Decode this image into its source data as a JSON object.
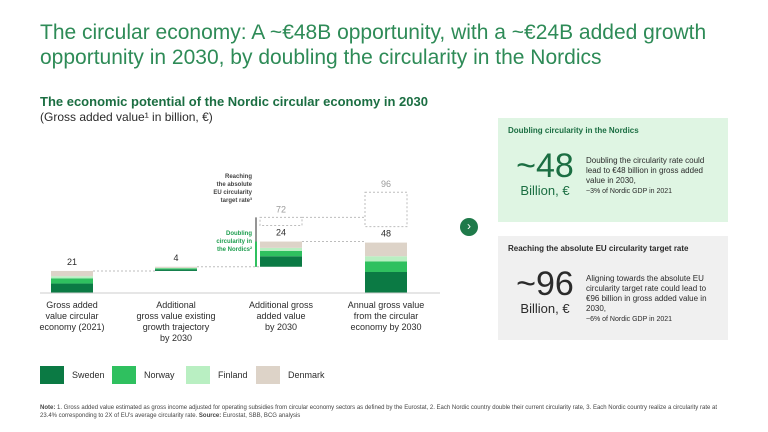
{
  "header": {
    "title": "The circular economy: A ~€48B opportunity, with a ~€24B added growth opportunity in 2030, by doubling the circularity in the Nordics"
  },
  "chart_title": "The economic potential of the Nordic circular economy in 2030",
  "chart_subtitle": "(Gross added value¹ in billion, €)",
  "colors": {
    "Sweden": "#0b7a44",
    "Norway": "#2fc05f",
    "Finland": "#b9efc2",
    "Denmark": "#ddd3c8",
    "title": "#2e8b57"
  },
  "chart_data": {
    "type": "bar",
    "subtype": "waterfall",
    "categories": [
      "Gross added value circular economy (2021)",
      "Additional gross value existing growth trajectory by 2030",
      "Additional gross added value by 2030",
      "Annual gross value from the circular economy by 2030"
    ],
    "category_lines": [
      [
        "Gross added",
        "value circular",
        "economy (2021)"
      ],
      [
        "Additional",
        "gross value existing",
        "growth trajectory",
        "by 2030"
      ],
      [
        "Additional gross",
        "added value",
        "by 2030"
      ],
      [
        "Annual gross value",
        "from the circular",
        "economy by 2030"
      ]
    ],
    "totals": [
      21,
      4,
      24,
      48
    ],
    "bases": [
      0,
      21,
      25,
      0
    ],
    "dashed_totals": [
      null,
      null,
      72,
      96
    ],
    "series": [
      {
        "name": "Sweden",
        "values": [
          9,
          1.5,
          10,
          20
        ]
      },
      {
        "name": "Norway",
        "values": [
          5,
          1,
          5,
          10
        ]
      },
      {
        "name": "Finland",
        "values": [
          2,
          0.5,
          3,
          5
        ]
      },
      {
        "name": "Denmark",
        "values": [
          5,
          1,
          6,
          13
        ]
      }
    ],
    "annotations": {
      "reaching": [
        "Reaching",
        "the absolute",
        "EU circularity",
        "target rate³"
      ],
      "doubling": [
        "Doubling",
        "circularity in",
        "the Nordics²"
      ]
    },
    "ylim": [
      0,
      100
    ],
    "legend": [
      "Sweden",
      "Norway",
      "Finland",
      "Denmark"
    ],
    "legend_position": "bottom-left"
  },
  "cards": [
    {
      "heading": "Doubling circularity in the Nordics",
      "big": "~48",
      "unit": "Billion, €",
      "desc": "Doubling the circularity rate could lead to €48 billion in gross added value in 2030,",
      "desc_small": "~3% of Nordic GDP in 2021"
    },
    {
      "heading": "Reaching the absolute EU circularity target rate",
      "big": "~96",
      "unit": "Billion, €",
      "desc": "Aligning towards the absolute EU circularity target rate could lead to €96 billion in gross added value in 2030,",
      "desc_small": "~6% of Nordic GDP in 2021"
    }
  ],
  "note": {
    "label": "Note:",
    "text": " 1. Gross added value estimated as gross income adjusted for operating subsidies from circular economy sectors as defined by the Eurostat, 2. Each Nordic country double their current circularity rate, 3. Each Nordic country realize a circularity rate at 23.4% corresponding to 2X of EU's average circularity rate. ",
    "source_label": "Source:",
    "source": " Eurostat, SBB, BCG analysis"
  }
}
